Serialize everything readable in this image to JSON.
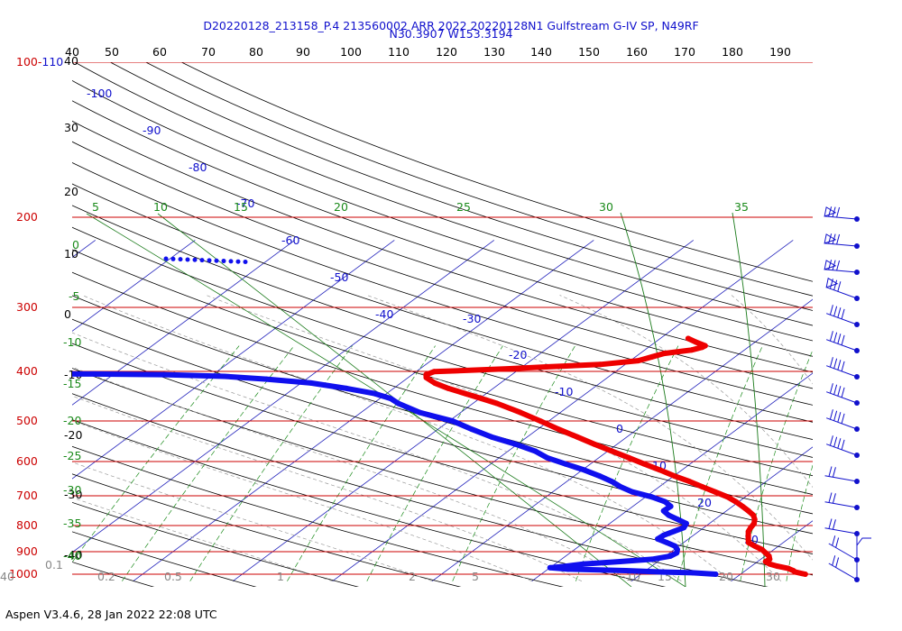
{
  "header": {
    "title": "D20220128_213158_P.4 213560002 ARR 2022  20220128N1 Gulfstream G-IV SP, N49RF",
    "location": "N30.3907 W153.3194"
  },
  "footer": {
    "version": "Aspen V3.4.6, 28 Jan 2022  22:08 UTC"
  },
  "chart_data": {
    "type": "line",
    "chart_kind": "skew-T log-P sounding",
    "pressure_levels": [
      "100-110",
      "200",
      "300",
      "400",
      "500",
      "600",
      "700",
      "800",
      "900",
      "1000"
    ],
    "top_theta_ticks": [
      "40",
      "50",
      "60",
      "70",
      "80",
      "90",
      "100",
      "110",
      "120",
      "130",
      "140",
      "150",
      "160",
      "170",
      "180",
      "190"
    ],
    "left_temp_ticks": [
      "40",
      "30",
      "20",
      "10",
      "0",
      "-10",
      "-20",
      "-30",
      "-40"
    ],
    "isotherm_labels": [
      "-100",
      "-90",
      "-80",
      "-70",
      "-60",
      "-50",
      "-40",
      "-30",
      "-20",
      "-10",
      "0",
      "10",
      "20",
      "30"
    ],
    "mixing_ratio_top": [
      "5",
      "10",
      "15",
      "20",
      "25",
      "30",
      "35"
    ],
    "mixing_ratio_left": [
      "0",
      "-5",
      "-10",
      "-15",
      "-20",
      "-25",
      "-30",
      "-35",
      "-40"
    ],
    "bottom_labels": [
      "0.1",
      "0.2",
      "0.5",
      "1",
      "2",
      "5",
      "10",
      "15",
      "20",
      "30",
      "40"
    ],
    "y_axis": {
      "scale": "log",
      "range": [
        1000,
        100
      ]
    },
    "x_axis": {
      "skewed": true
    },
    "series": [
      {
        "values": [
          [
            1000,
            26.5
          ],
          [
            985,
            25.2
          ],
          [
            975,
            24.8
          ],
          [
            960,
            24.0
          ],
          [
            945,
            22.6
          ],
          [
            930,
            21.5
          ],
          [
            915,
            20.8
          ],
          [
            900,
            20.9
          ],
          [
            880,
            20.4
          ],
          [
            860,
            19.6
          ],
          [
            840,
            18.8
          ],
          [
            820,
            17.6
          ],
          [
            800,
            16.5
          ],
          [
            780,
            16.0
          ],
          [
            760,
            15.5
          ],
          [
            740,
            15.0
          ],
          [
            720,
            14.7
          ],
          [
            700,
            14.5
          ],
          [
            680,
            14.0
          ],
          [
            660,
            13.3
          ],
          [
            640,
            12.2
          ],
          [
            620,
            11.0
          ],
          [
            600,
            9.7
          ],
          [
            580,
            8.2
          ],
          [
            560,
            6.3
          ],
          [
            540,
            4.3
          ],
          [
            520,
            2.3
          ],
          [
            500,
            0.0
          ],
          [
            480,
            -2.2
          ],
          [
            460,
            -4.6
          ],
          [
            440,
            -7.0
          ],
          [
            420,
            -9.6
          ],
          [
            400,
            -12.3
          ],
          [
            380,
            -15.0
          ],
          [
            360,
            -17.9
          ],
          [
            340,
            -20.8
          ],
          [
            320,
            -24.0
          ],
          [
            300,
            -27.6
          ],
          [
            290,
            -29.8
          ],
          [
            280,
            -32.1
          ],
          [
            270,
            -34.5
          ],
          [
            260,
            -36.6
          ],
          [
            250,
            -38.2
          ],
          [
            245,
            -38.6
          ],
          [
            240,
            -38.2
          ],
          [
            235,
            -31.0
          ],
          [
            232,
            -27.6
          ],
          [
            228,
            -22.5
          ],
          [
            222,
            -19.2
          ],
          [
            216,
            -18.3
          ],
          [
            211,
            -17.6
          ],
          [
            206,
            -15.3
          ],
          [
            202,
            -14.6
          ],
          [
            200,
            -14.5
          ],
          [
            195,
            -15.9
          ],
          [
            190,
            -17.2
          ]
        ]
      },
      {
        "values": [
          [
            1000,
            17.5
          ],
          [
            990,
            15.0
          ],
          [
            985,
            12.0
          ],
          [
            975,
            8.0
          ],
          [
            965,
            2.0
          ],
          [
            955,
            0.0
          ],
          [
            945,
            1.4
          ],
          [
            930,
            2.9
          ],
          [
            915,
            6.2
          ],
          [
            900,
            9.1
          ],
          [
            880,
            10.5
          ],
          [
            860,
            10.7
          ],
          [
            840,
            10.3
          ],
          [
            820,
            9.6
          ],
          [
            800,
            8.3
          ],
          [
            780,
            6.9
          ],
          [
            760,
            7.0
          ],
          [
            740,
            7.5
          ],
          [
            720,
            8.0
          ],
          [
            700,
            7.7
          ],
          [
            680,
            6.3
          ],
          [
            660,
            4.8
          ],
          [
            640,
            3.7
          ],
          [
            620,
            3.8
          ],
          [
            600,
            2.6
          ],
          [
            580,
            0.6
          ],
          [
            560,
            -2.0
          ],
          [
            540,
            -3.9
          ],
          [
            520,
            -5.5
          ],
          [
            500,
            -7.5
          ],
          [
            480,
            -9.8
          ],
          [
            460,
            -12.5
          ],
          [
            440,
            -15.2
          ],
          [
            420,
            -17.3
          ],
          [
            400,
            -20.2
          ],
          [
            380,
            -23.6
          ],
          [
            360,
            -26.6
          ],
          [
            340,
            -29.6
          ],
          [
            320,
            -34.1
          ],
          [
            300,
            -37.5
          ],
          [
            290,
            -38.9
          ],
          [
            280,
            -41.2
          ],
          [
            270,
            -44.7
          ],
          [
            260,
            -49.0
          ],
          [
            253,
            -54.0
          ],
          [
            248,
            -58.6
          ],
          [
            245,
            -64.9
          ],
          [
            244,
            -72.0
          ],
          [
            244,
            -80.0
          ],
          [
            243,
            -88.0
          ],
          [
            238,
            -90.0
          ],
          [
            230,
            -92.5
          ],
          [
            222,
            -92.3
          ],
          [
            215,
            -91.4
          ],
          [
            208,
            -90.8
          ]
        ]
      }
    ]
  }
}
